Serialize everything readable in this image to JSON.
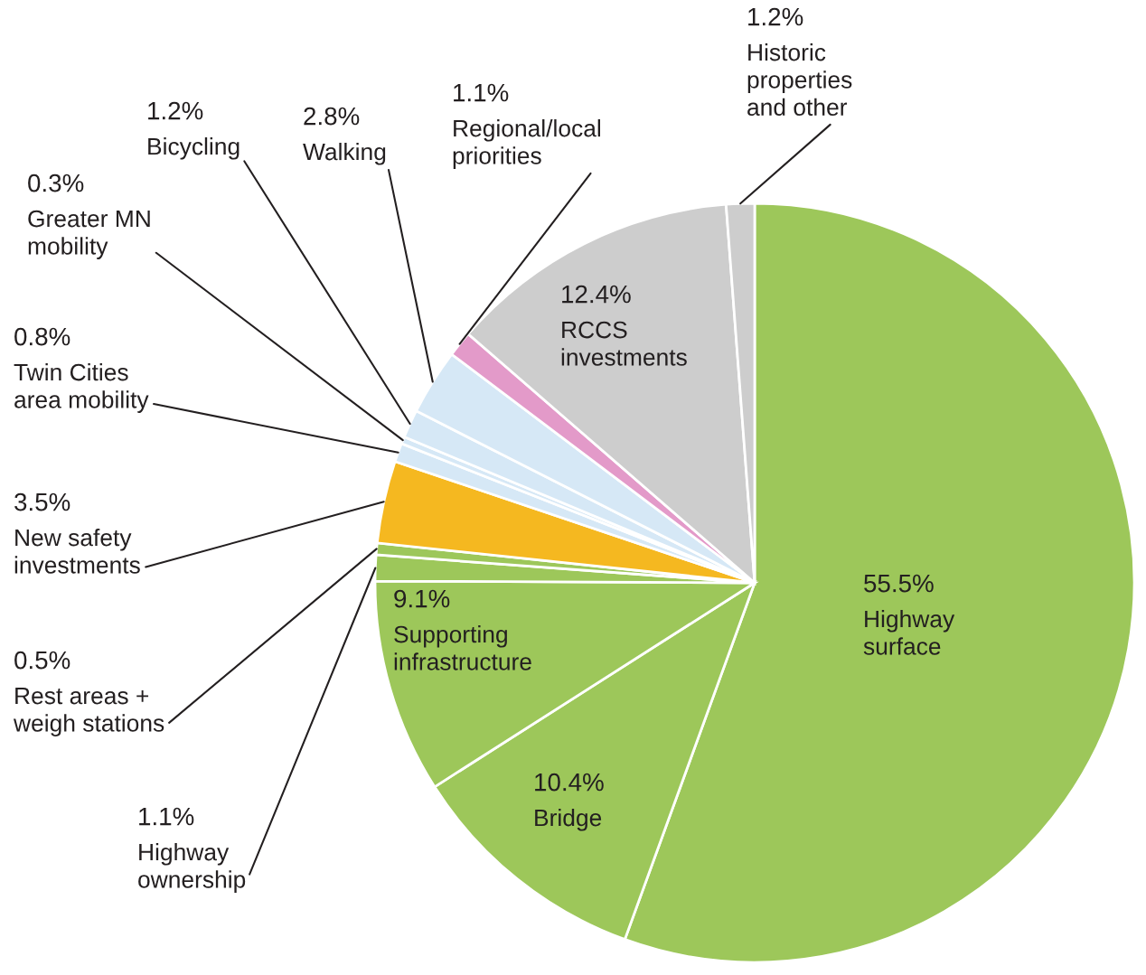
{
  "chart_data": {
    "type": "pie",
    "categories": [
      "Highway\nsurface",
      "Bridge",
      "Supporting\ninfrastructure",
      "Highway\nownership",
      "Rest areas +\nweigh stations",
      "New safety\ninvestments",
      "Twin Cities\narea mobility",
      "Greater MN\nmobility",
      "Bicycling",
      "Walking",
      "Regional/local\npriorities",
      "RCCS\ninvestments",
      "Historic\nproperties\nand other"
    ],
    "values": [
      55.5,
      10.4,
      9.1,
      1.1,
      0.5,
      3.5,
      0.8,
      0.3,
      1.2,
      2.8,
      1.1,
      12.4,
      1.2
    ],
    "value_labels": [
      "55.5%",
      "10.4%",
      "9.1%",
      "1.1%",
      "0.5%",
      "3.5%",
      "0.8%",
      "0.3%",
      "1.2%",
      "2.8%",
      "1.1%",
      "12.4%",
      "1.2%"
    ],
    "colors": [
      "#9dc75a",
      "#9dc75a",
      "#9dc75a",
      "#9dc75a",
      "#9dc75a",
      "#f5b820",
      "#d6e8f6",
      "#d6e8f6",
      "#d6e8f6",
      "#d6e8f6",
      "#e39ac9",
      "#cdcdcd",
      "#cdcdcd"
    ]
  }
}
